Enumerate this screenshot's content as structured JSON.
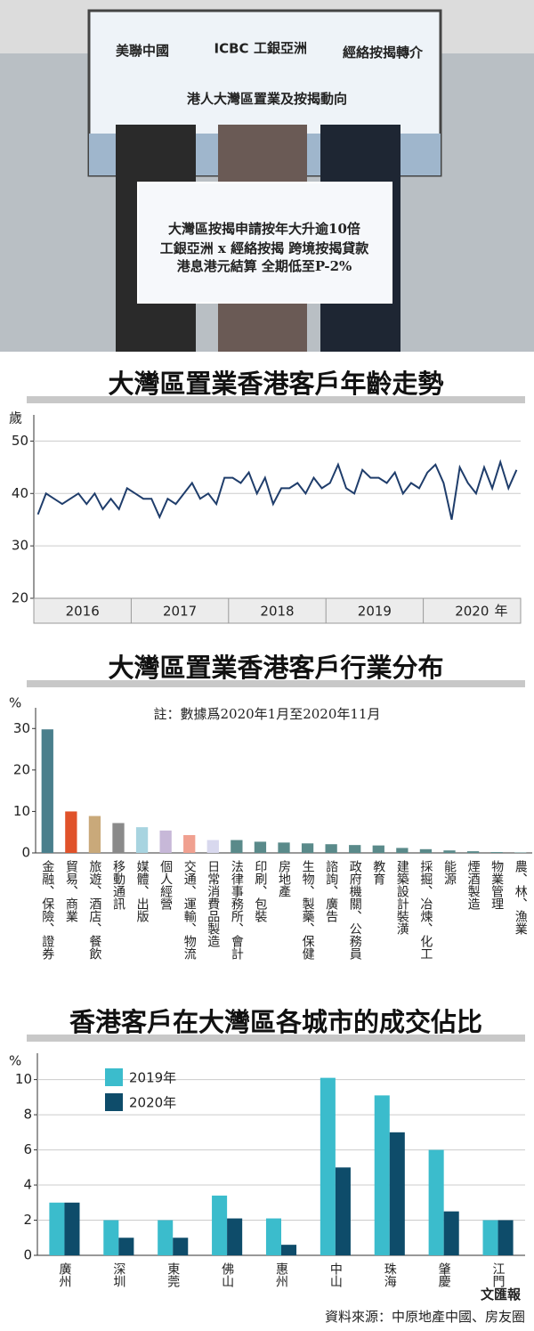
{
  "photo": {
    "logos": [
      "美聯中國",
      "ICBC",
      "工銀亞洲",
      "經絡按揭轉介"
    ],
    "banner": "港人大灣區置業及按揭動向",
    "board": [
      "大灣區按揭申請按年大升逾10倍",
      "工銀亞洲 x 經絡按揭 跨境按揭貸款",
      "港息港元結算 全期低至P-2%"
    ]
  },
  "chart_data": [
    {
      "type": "line",
      "title": "大灣區置業香港客戶年齡走勢",
      "ylabel": "歲",
      "xlabel": "年",
      "color": "#1f3d6b",
      "grid": true,
      "categories": [
        "2016",
        null,
        null,
        null,
        null,
        null,
        null,
        null,
        null,
        null,
        null,
        null,
        "2017",
        null,
        null,
        null,
        null,
        null,
        null,
        null,
        null,
        null,
        null,
        null,
        "2018",
        null,
        null,
        null,
        null,
        null,
        null,
        null,
        null,
        null,
        null,
        null,
        "2019",
        null,
        null,
        null,
        null,
        null,
        null,
        null,
        null,
        null,
        null,
        null,
        "2020",
        null,
        null,
        null,
        null,
        null,
        null,
        null,
        null,
        null,
        null,
        null
      ],
      "values": [
        36,
        40,
        39,
        38,
        39,
        40,
        38,
        40,
        37,
        39,
        37,
        41,
        40,
        39,
        39,
        35.5,
        39,
        38,
        40,
        42,
        39,
        40,
        38,
        43,
        43,
        42,
        44,
        40,
        43,
        38,
        41,
        41,
        42,
        40,
        43,
        41,
        42,
        45.5,
        41,
        40,
        44.5,
        43,
        43,
        42,
        44,
        40,
        42,
        41,
        44,
        45.5,
        42,
        35,
        45,
        42,
        40,
        45,
        41,
        46,
        41,
        44.5
      ],
      "ylim": [
        20,
        55
      ],
      "yticks": [
        20,
        30,
        40,
        50
      ]
    },
    {
      "type": "bar",
      "title": "大灣區置業香港客戶行業分布",
      "note": "註：數據爲2020年1月至2020年11月",
      "ylabel": "%",
      "grid": false,
      "categories": [
        "金融、保險、證券",
        "貿易、商業",
        "旅遊、酒店、餐飲",
        "移動通訊",
        "媒體、出版",
        "個人經營",
        "交通、運輸、物流",
        "日常消費品製造",
        "法律事務所、會計",
        "印刷、包裝",
        "房地產",
        "生物、製藥、保健",
        "諮詢、廣告",
        "政府機關、公務員",
        "教育",
        "建築設計裝潢",
        "採掘、冶煉、化工",
        "能源",
        "煙酒製造",
        "物業管理",
        "農、林、漁業"
      ],
      "values": [
        29.8,
        10,
        8.9,
        7.2,
        6.2,
        5.4,
        4.3,
        3.1,
        3.1,
        2.7,
        2.5,
        2.3,
        2.1,
        1.9,
        1.8,
        1.2,
        0.9,
        0.6,
        0.4,
        0.2,
        0.1
      ],
      "colors": [
        "#4a7f8c",
        "#e0522a",
        "#c9a97a",
        "#8a8a8a",
        "#a8d4e0",
        "#c7b8d8",
        "#f0a090",
        "#d8d8ee",
        "#5a8a8a",
        "#5a8a8a",
        "#5a8a8a",
        "#5a8a8a",
        "#5a8a8a",
        "#5a8a8a",
        "#5a8a8a",
        "#5a8a8a",
        "#5a8a8a",
        "#5a8a8a",
        "#5a8a8a",
        "#5a8a8a",
        "#5a8a8a"
      ],
      "ylim": [
        0,
        35
      ],
      "yticks": [
        0,
        10,
        20,
        30
      ]
    },
    {
      "type": "bar",
      "title": "香港客戶在大灣區各城市的成交佔比",
      "ylabel": "%",
      "grid": true,
      "categories": [
        "廣州",
        "深圳",
        "東莞",
        "佛山",
        "惠州",
        "中山",
        "珠海",
        "肇慶",
        "江門"
      ],
      "series": [
        {
          "name": "2019年",
          "color": "#3bbccc",
          "values": [
            3,
            2,
            2,
            3.4,
            2.1,
            10.1,
            9.1,
            6,
            2
          ]
        },
        {
          "name": "2020年",
          "color": "#0e4c6a",
          "values": [
            3,
            1,
            1,
            2.1,
            0.6,
            5,
            7,
            2.5,
            2
          ]
        }
      ],
      "ylim": [
        0,
        11.5
      ],
      "yticks": [
        0,
        2,
        4,
        6,
        8,
        10
      ]
    }
  ],
  "source": "資料來源：中原地產中國、房友圈",
  "watermark": "文匯報"
}
